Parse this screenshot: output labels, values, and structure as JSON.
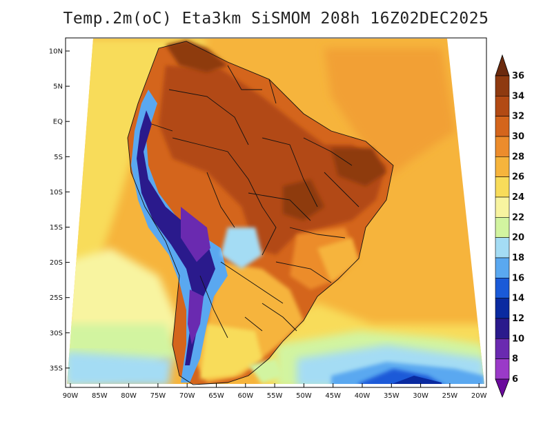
{
  "title": "Temp.2m(oC) Eta3km SiSMOM 208h 16Z02DEC2025",
  "lat_ticks": [
    "10N",
    "5N",
    "EQ",
    "5S",
    "10S",
    "15S",
    "20S",
    "25S",
    "30S",
    "35S"
  ],
  "lon_ticks": [
    "90W",
    "85W",
    "80W",
    "75W",
    "70W",
    "65W",
    "60W",
    "55W",
    "50W",
    "45W",
    "40W",
    "35W",
    "30W",
    "25W",
    "20W"
  ],
  "colorbar": {
    "labels": [
      "36",
      "34",
      "32",
      "30",
      "28",
      "26",
      "24",
      "22",
      "20",
      "18",
      "16",
      "14",
      "12",
      "10",
      "8",
      "6"
    ],
    "colors": [
      "#6b2a0e",
      "#8e3a10",
      "#b24a14",
      "#d4651c",
      "#ec8c2c",
      "#f6b43c",
      "#f8dc5a",
      "#f8f4a0",
      "#d2f4a0",
      "#a4dcf4",
      "#5aa8f0",
      "#1a5ad8",
      "#0a2aa0",
      "#2a1a8c",
      "#6a2ab0",
      "#9a3ac8",
      "#6a0a9c"
    ]
  }
}
